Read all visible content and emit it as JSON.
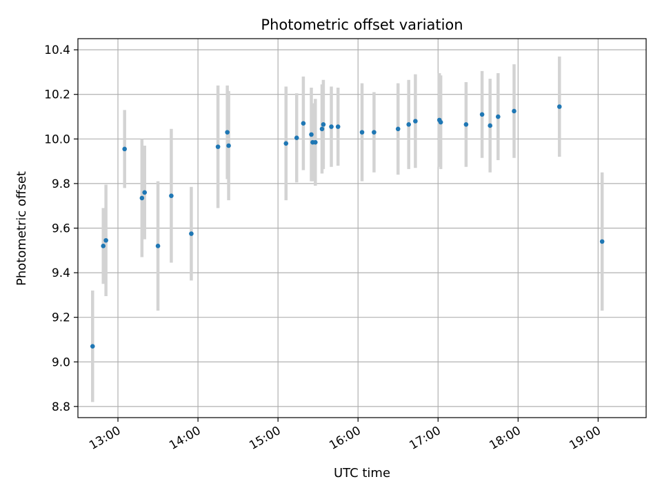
{
  "chart_data": {
    "type": "scatter",
    "title": "Photometric offset variation",
    "xlabel": "UTC time",
    "ylabel": "Photometric offset",
    "x_unit": "hours",
    "xlim": [
      "12:30",
      "19:36"
    ],
    "ylim": [
      8.75,
      10.45
    ],
    "grid": true,
    "x_tick_labels": [
      "13:00",
      "14:00",
      "15:00",
      "16:00",
      "17:00",
      "18:00",
      "19:00"
    ],
    "y_tick_labels": [
      "8.8",
      "9.0",
      "9.2",
      "9.4",
      "9.6",
      "9.8",
      "10.0",
      "10.2",
      "10.4"
    ],
    "colors": {
      "point": "#1f77b4",
      "errorbar": "#d3d3d3",
      "grid": "#b0b0b0"
    },
    "points": [
      {
        "time": "12:41",
        "y": 9.07,
        "err": 0.25
      },
      {
        "time": "12:49",
        "y": 9.52,
        "err": 0.17
      },
      {
        "time": "12:51",
        "y": 9.545,
        "err": 0.25
      },
      {
        "time": "13:05",
        "y": 9.955,
        "err": 0.175
      },
      {
        "time": "13:18",
        "y": 9.735,
        "err": 0.265
      },
      {
        "time": "13:20",
        "y": 9.76,
        "err": 0.21
      },
      {
        "time": "13:30",
        "y": 9.52,
        "err": 0.29
      },
      {
        "time": "13:40",
        "y": 9.745,
        "err": 0.3
      },
      {
        "time": "13:55",
        "y": 9.575,
        "err": 0.21
      },
      {
        "time": "14:15",
        "y": 9.965,
        "err": 0.275
      },
      {
        "time": "14:22",
        "y": 10.03,
        "err": 0.21
      },
      {
        "time": "14:23",
        "y": 9.97,
        "err": 0.245
      },
      {
        "time": "15:06",
        "y": 9.98,
        "err": 0.255
      },
      {
        "time": "15:14",
        "y": 10.005,
        "err": 0.2
      },
      {
        "time": "15:19",
        "y": 10.07,
        "err": 0.21
      },
      {
        "time": "15:25",
        "y": 10.02,
        "err": 0.21
      },
      {
        "time": "15:26",
        "y": 9.985,
        "err": 0.175
      },
      {
        "time": "15:28",
        "y": 9.985,
        "err": 0.195
      },
      {
        "time": "15:33",
        "y": 10.045,
        "err": 0.2
      },
      {
        "time": "15:34",
        "y": 10.065,
        "err": 0.2
      },
      {
        "time": "15:40",
        "y": 10.055,
        "err": 0.18
      },
      {
        "time": "15:45",
        "y": 10.055,
        "err": 0.175
      },
      {
        "time": "16:03",
        "y": 10.03,
        "err": 0.22
      },
      {
        "time": "16:12",
        "y": 10.03,
        "err": 0.18
      },
      {
        "time": "16:30",
        "y": 10.045,
        "err": 0.205
      },
      {
        "time": "16:38",
        "y": 10.065,
        "err": 0.2
      },
      {
        "time": "16:43",
        "y": 10.08,
        "err": 0.21
      },
      {
        "time": "17:01",
        "y": 10.085,
        "err": 0.21
      },
      {
        "time": "17:02",
        "y": 10.075,
        "err": 0.21
      },
      {
        "time": "17:21",
        "y": 10.065,
        "err": 0.19
      },
      {
        "time": "17:33",
        "y": 10.11,
        "err": 0.195
      },
      {
        "time": "17:39",
        "y": 10.06,
        "err": 0.21
      },
      {
        "time": "17:45",
        "y": 10.1,
        "err": 0.195
      },
      {
        "time": "17:57",
        "y": 10.125,
        "err": 0.21
      },
      {
        "time": "18:31",
        "y": 10.145,
        "err": 0.225
      },
      {
        "time": "19:03",
        "y": 9.54,
        "err": 0.31
      }
    ]
  }
}
